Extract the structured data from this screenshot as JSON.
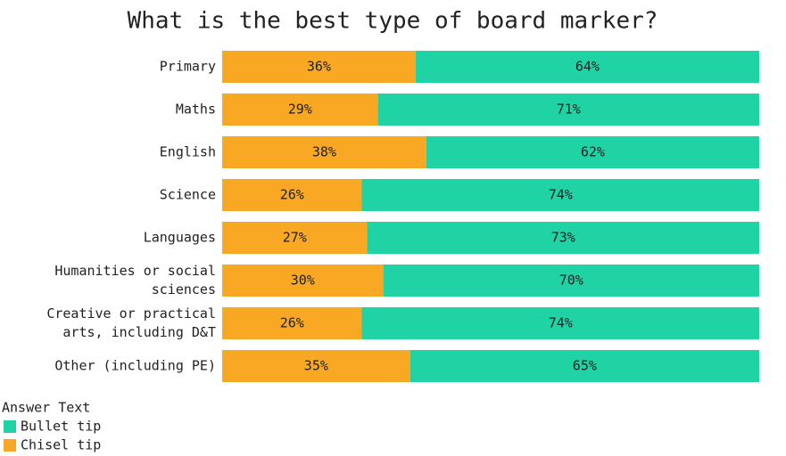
{
  "chart_data": {
    "type": "stacked-bar-horizontal",
    "title": "What is the best type of board marker?",
    "categories": [
      "Primary",
      "Maths",
      "English",
      "Science",
      "Languages",
      "Humanities or social\nsciences",
      "Creative or practical\narts, including D&T",
      "Other (including PE)"
    ],
    "series": [
      {
        "name": "Chisel tip",
        "color": "#f8a823",
        "values": [
          36,
          29,
          38,
          26,
          27,
          30,
          26,
          35
        ],
        "value_labels": [
          "36%",
          "29%",
          "38%",
          "26%",
          "27%",
          "30%",
          "26%",
          "35%"
        ]
      },
      {
        "name": "Bullet tip",
        "color": "#1fd3a5",
        "values": [
          64,
          71,
          62,
          74,
          73,
          70,
          74,
          65
        ],
        "value_labels": [
          "64%",
          "71%",
          "62%",
          "74%",
          "73%",
          "70%",
          "74%",
          "65%"
        ]
      }
    ],
    "xlim": [
      0,
      100
    ],
    "legend_title": "Answer Text",
    "legend_position": "bottom-left"
  }
}
